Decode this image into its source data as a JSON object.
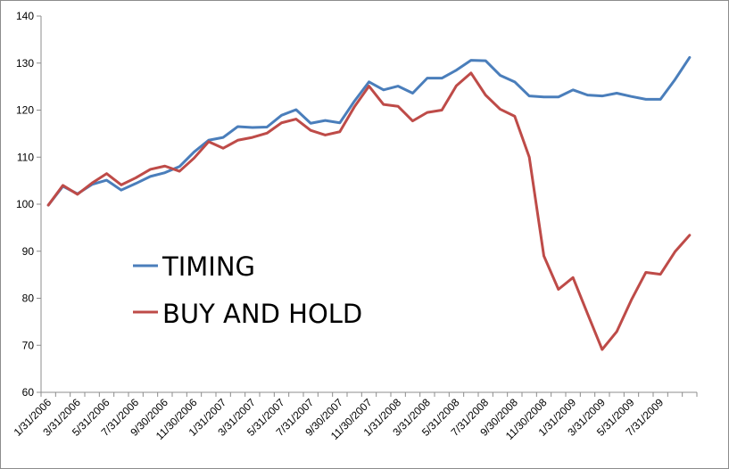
{
  "chart_data": {
    "type": "line",
    "title": "",
    "xlabel": "",
    "ylabel": "",
    "ylim": [
      60,
      140
    ],
    "y_ticks": [
      "60",
      "70",
      "80",
      "90",
      "100",
      "110",
      "120",
      "130",
      "140"
    ],
    "x": [
      "1/31/2006",
      "2/28/2006",
      "3/31/2006",
      "4/30/2006",
      "5/31/2006",
      "6/30/2006",
      "7/31/2006",
      "8/31/2006",
      "9/30/2006",
      "10/31/2006",
      "11/30/2006",
      "12/31/2006",
      "1/31/2007",
      "2/28/2007",
      "3/31/2007",
      "4/30/2007",
      "5/31/2007",
      "6/30/2007",
      "7/31/2007",
      "8/31/2007",
      "9/30/2007",
      "10/31/2007",
      "11/30/2007",
      "12/31/2007",
      "1/31/2008",
      "2/29/2008",
      "3/31/2008",
      "4/30/2008",
      "5/31/2008",
      "6/30/2008",
      "7/31/2008",
      "8/31/2008",
      "9/30/2008",
      "10/31/2008",
      "11/30/2008",
      "12/31/2008",
      "1/31/2009",
      "2/28/2009",
      "3/31/2009",
      "4/30/2009",
      "5/31/2009",
      "6/30/2009",
      "7/31/2009",
      "8/31/2009",
      "9/30/2009"
    ],
    "x_tick_labels": [
      "1/31/2006",
      "3/31/2006",
      "5/31/2006",
      "7/31/2006",
      "9/30/2006",
      "11/30/2006",
      "1/31/2007",
      "3/31/2007",
      "5/31/2007",
      "7/31/2007",
      "9/30/2007",
      "11/30/2007",
      "1/31/2008",
      "3/31/2008",
      "5/31/2008",
      "7/31/2008",
      "9/30/2008",
      "11/30/2008",
      "1/31/2009",
      "3/31/2009",
      "5/31/2009",
      "7/31/2009"
    ],
    "series": [
      {
        "name": "TIMING",
        "color": "#4a7ebb",
        "values": [
          99.8,
          103.8,
          102.2,
          104.2,
          105.1,
          103.0,
          104.4,
          105.9,
          106.7,
          108.0,
          111.1,
          113.6,
          114.2,
          116.5,
          116.3,
          116.4,
          118.9,
          120.1,
          117.2,
          117.8,
          117.3,
          121.9,
          126.0,
          124.3,
          125.1,
          123.6,
          126.8,
          126.8,
          128.5,
          130.6,
          130.5,
          127.4,
          126.0,
          123.0,
          122.8,
          122.8,
          124.3,
          123.2,
          123.0,
          123.6,
          122.9,
          122.3,
          122.3,
          126.5,
          131.2
        ]
      },
      {
        "name": "BUY AND HOLD",
        "color": "#be4b48",
        "values": [
          99.8,
          104.0,
          102.1,
          104.5,
          106.5,
          104.1,
          105.6,
          107.4,
          108.1,
          107.0,
          109.8,
          113.3,
          111.9,
          113.6,
          114.2,
          115.1,
          117.3,
          118.1,
          115.7,
          114.7,
          115.4,
          120.7,
          125.1,
          121.2,
          120.8,
          117.7,
          119.5,
          120.0,
          125.2,
          127.9,
          123.2,
          120.2,
          118.7,
          110.0,
          89.0,
          81.9,
          84.4,
          76.7,
          69.1,
          72.9,
          79.6,
          85.5,
          85.1,
          89.9,
          93.4
        ]
      }
    ],
    "grid": false,
    "legend_position": "middle-left"
  }
}
